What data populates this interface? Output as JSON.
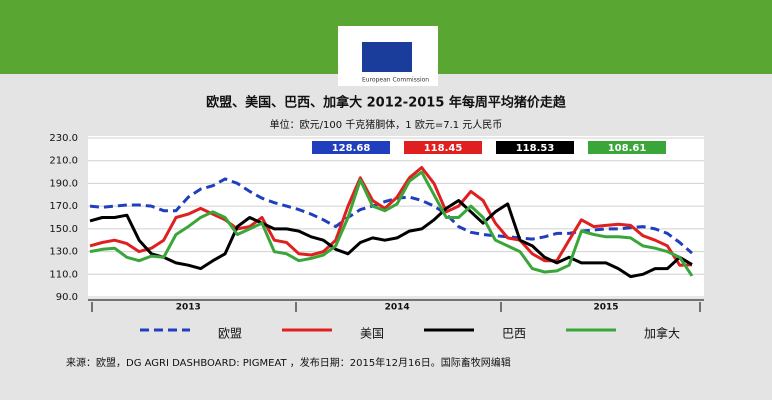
{
  "chart_data": {
    "type": "line",
    "title": "欧盟、美国、巴西、加拿大 2012-2015 年每周平均猪价走趋",
    "subtitle": "单位：欧元/100 千克猪胴体，1 欧元=7.1 元人民币",
    "source": "来源：欧盟，DG AGRI DASHBOARD: PIGMEAT ，发布日期：2015年12月16日。国际畜牧网编辑",
    "logo_text": "European Commission",
    "categories": [
      null,
      null,
      null,
      null,
      null,
      null,
      null,
      null,
      "2013",
      null,
      null,
      null,
      null,
      null,
      null,
      null,
      null,
      null,
      null,
      null,
      null,
      null,
      null,
      null,
      null,
      "2014",
      null,
      null,
      null,
      null,
      null,
      null,
      null,
      null,
      null,
      null,
      null,
      null,
      null,
      null,
      null,
      null,
      "2015",
      null,
      null,
      null,
      null,
      null,
      null,
      null
    ],
    "ylim": [
      90,
      230
    ],
    "yticks": [
      {
        "value": 90,
        "label": "90.0"
      },
      {
        "value": 110,
        "label": "110.0"
      },
      {
        "value": 130,
        "label": "130.0"
      },
      {
        "value": 150,
        "label": "150.0"
      },
      {
        "value": 170,
        "label": "170.0"
      },
      {
        "value": 190,
        "label": "190.0"
      },
      {
        "value": 210,
        "label": "210.0"
      },
      {
        "value": 230,
        "label": "230.0"
      }
    ],
    "grid": true,
    "series": [
      {
        "name": "欧盟",
        "color": "#1f3fbf",
        "dashed": true,
        "latest": 128.68,
        "values": [
          170,
          169,
          170,
          171,
          171,
          170,
          166,
          166,
          178,
          185,
          188,
          194,
          190,
          183,
          177,
          173,
          170,
          167,
          163,
          158,
          152,
          160,
          167,
          170,
          174,
          177,
          178,
          175,
          170,
          163,
          152,
          147,
          145,
          144,
          143,
          142,
          141,
          143,
          146,
          146,
          148,
          149,
          150,
          150,
          151,
          152,
          150,
          146,
          138,
          128.68
        ]
      },
      {
        "name": "美国",
        "color": "#e02020",
        "dashed": false,
        "latest": 118.45,
        "values": [
          135,
          138,
          140,
          137,
          130,
          133,
          140,
          160,
          163,
          168,
          163,
          158,
          150,
          152,
          160,
          140,
          138,
          128,
          127,
          130,
          140,
          170,
          195,
          175,
          168,
          178,
          195,
          204,
          190,
          165,
          170,
          183,
          175,
          155,
          142,
          140,
          128,
          122,
          122,
          140,
          158,
          152,
          153,
          154,
          153,
          144,
          140,
          135,
          118,
          118.45
        ]
      },
      {
        "name": "巴西",
        "color": "#000000",
        "dashed": false,
        "latest": 118.53,
        "values": [
          157,
          160,
          160,
          162,
          140,
          128,
          125,
          120,
          118,
          115,
          122,
          128,
          152,
          160,
          155,
          150,
          150,
          148,
          143,
          140,
          132,
          128,
          138,
          142,
          140,
          142,
          148,
          150,
          158,
          168,
          175,
          165,
          155,
          165,
          172,
          140,
          135,
          125,
          120,
          125,
          120,
          120,
          120,
          115,
          108,
          110,
          115,
          115,
          125,
          118.53
        ]
      },
      {
        "name": "加拿大",
        "color": "#3aa63a",
        "dashed": false,
        "latest": 108.61,
        "values": [
          130,
          132,
          133,
          125,
          122,
          126,
          125,
          145,
          152,
          160,
          165,
          160,
          145,
          150,
          155,
          130,
          128,
          122,
          124,
          127,
          135,
          160,
          193,
          170,
          166,
          172,
          192,
          200,
          180,
          160,
          160,
          170,
          160,
          140,
          135,
          130,
          115,
          112,
          113,
          118,
          148,
          145,
          143,
          143,
          142,
          135,
          133,
          130,
          125,
          108.61
        ]
      }
    ]
  }
}
